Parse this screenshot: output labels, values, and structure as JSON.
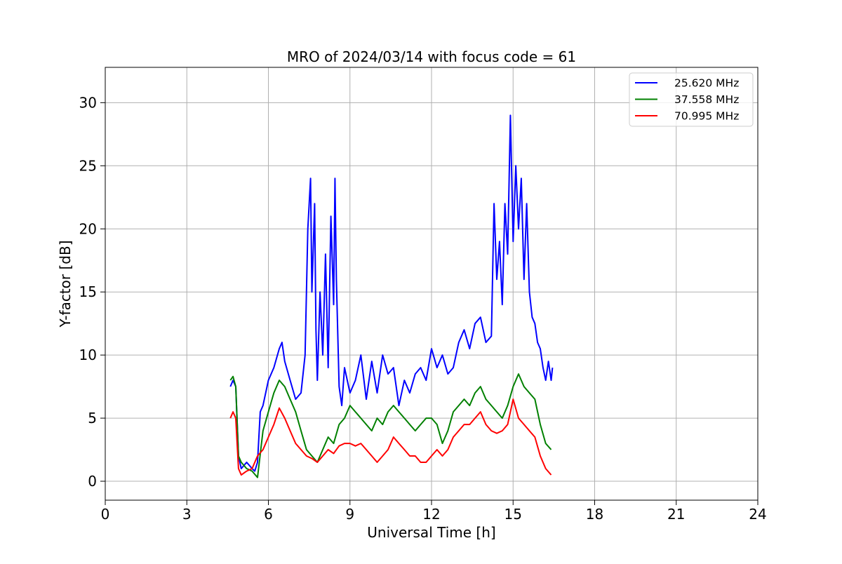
{
  "chart_data": {
    "type": "line",
    "title": "MRO of 2024/03/14 with focus code = 61",
    "xlabel": "Universal Time [h]",
    "ylabel": "Y-factor [dB]",
    "xlim": [
      0,
      24
    ],
    "ylim": [
      -1.5,
      32.8
    ],
    "xticks": [
      0,
      3,
      6,
      9,
      12,
      15,
      18,
      21,
      24
    ],
    "yticks": [
      0,
      5,
      10,
      15,
      20,
      25,
      30
    ],
    "grid": true,
    "legend_position": "top-right",
    "series": [
      {
        "name": "25.620 MHz",
        "color": "#0000ff",
        "x": [
          4.6,
          4.7,
          4.8,
          4.9,
          5.0,
          5.2,
          5.4,
          5.5,
          5.6,
          5.7,
          5.8,
          6.0,
          6.2,
          6.4,
          6.5,
          6.6,
          6.8,
          7.0,
          7.2,
          7.35,
          7.45,
          7.55,
          7.6,
          7.7,
          7.75,
          7.8,
          7.9,
          8.0,
          8.1,
          8.2,
          8.3,
          8.4,
          8.45,
          8.5,
          8.6,
          8.7,
          8.8,
          9.0,
          9.2,
          9.4,
          9.6,
          9.8,
          10.0,
          10.2,
          10.4,
          10.6,
          10.8,
          11.0,
          11.2,
          11.4,
          11.6,
          11.8,
          12.0,
          12.2,
          12.4,
          12.6,
          12.8,
          13.0,
          13.2,
          13.4,
          13.6,
          13.8,
          14.0,
          14.2,
          14.3,
          14.4,
          14.5,
          14.6,
          14.7,
          14.8,
          14.9,
          15.0,
          15.1,
          15.2,
          15.3,
          15.4,
          15.5,
          15.6,
          15.7,
          15.8,
          15.9,
          16.0,
          16.1,
          16.2,
          16.3,
          16.4,
          16.45
        ],
        "y": [
          7.5,
          8.0,
          7.5,
          2.0,
          1.0,
          1.5,
          1.0,
          0.8,
          1.5,
          5.5,
          6.0,
          8.0,
          9.0,
          10.5,
          11.0,
          9.5,
          8.0,
          6.5,
          7.0,
          10.0,
          20.0,
          24.0,
          15.0,
          22.0,
          12.0,
          8.0,
          15.0,
          10.0,
          18.0,
          9.0,
          21.0,
          14.0,
          24.0,
          16.0,
          7.5,
          6.0,
          9.0,
          7.0,
          8.0,
          10.0,
          6.5,
          9.5,
          7.0,
          10.0,
          8.5,
          9.0,
          6.0,
          8.0,
          7.0,
          8.5,
          9.0,
          8.0,
          10.5,
          9.0,
          10.0,
          8.5,
          9.0,
          11.0,
          12.0,
          10.5,
          12.5,
          13.0,
          11.0,
          11.5,
          22.0,
          16.0,
          19.0,
          14.0,
          22.0,
          18.0,
          29.0,
          19.0,
          25.0,
          20.0,
          24.0,
          16.0,
          22.0,
          15.0,
          13.0,
          12.5,
          11.0,
          10.5,
          9.0,
          8.0,
          9.5,
          8.0,
          9.0
        ]
      },
      {
        "name": "37.558 MHz",
        "color": "#008000",
        "x": [
          4.6,
          4.7,
          4.8,
          4.9,
          5.0,
          5.2,
          5.4,
          5.6,
          5.8,
          6.0,
          6.2,
          6.4,
          6.6,
          6.8,
          7.0,
          7.2,
          7.4,
          7.6,
          7.8,
          8.0,
          8.2,
          8.4,
          8.6,
          8.8,
          9.0,
          9.2,
          9.4,
          9.6,
          9.8,
          10.0,
          10.2,
          10.4,
          10.6,
          10.8,
          11.0,
          11.2,
          11.4,
          11.6,
          11.8,
          12.0,
          12.2,
          12.4,
          12.6,
          12.8,
          13.0,
          13.2,
          13.4,
          13.6,
          13.8,
          14.0,
          14.2,
          14.4,
          14.6,
          14.8,
          15.0,
          15.2,
          15.4,
          15.6,
          15.8,
          16.0,
          16.2,
          16.4
        ],
        "y": [
          8.0,
          8.3,
          7.5,
          2.0,
          1.5,
          1.0,
          0.8,
          0.3,
          4.0,
          5.5,
          7.0,
          8.0,
          7.5,
          6.5,
          5.5,
          4.0,
          2.5,
          2.0,
          1.5,
          2.5,
          3.5,
          3.0,
          4.5,
          5.0,
          6.0,
          5.5,
          5.0,
          4.5,
          4.0,
          5.0,
          4.5,
          5.5,
          6.0,
          5.5,
          5.0,
          4.5,
          4.0,
          4.5,
          5.0,
          5.0,
          4.5,
          3.0,
          4.0,
          5.5,
          6.0,
          6.5,
          6.0,
          7.0,
          7.5,
          6.5,
          6.0,
          5.5,
          5.0,
          6.0,
          7.5,
          8.5,
          7.5,
          7.0,
          6.5,
          4.5,
          3.0,
          2.5
        ]
      },
      {
        "name": "70.995 MHz",
        "color": "#ff0000",
        "x": [
          4.6,
          4.7,
          4.8,
          4.9,
          5.0,
          5.2,
          5.4,
          5.6,
          5.8,
          6.0,
          6.2,
          6.4,
          6.6,
          6.8,
          7.0,
          7.2,
          7.4,
          7.6,
          7.8,
          8.0,
          8.2,
          8.4,
          8.6,
          8.8,
          9.0,
          9.2,
          9.4,
          9.6,
          9.8,
          10.0,
          10.2,
          10.4,
          10.6,
          10.8,
          11.0,
          11.2,
          11.4,
          11.6,
          11.8,
          12.0,
          12.2,
          12.4,
          12.6,
          12.8,
          13.0,
          13.2,
          13.4,
          13.6,
          13.8,
          14.0,
          14.2,
          14.4,
          14.6,
          14.8,
          15.0,
          15.2,
          15.4,
          15.6,
          15.8,
          16.0,
          16.2,
          16.4
        ],
        "y": [
          5.0,
          5.5,
          5.0,
          1.0,
          0.5,
          0.8,
          1.0,
          2.0,
          2.5,
          3.5,
          4.5,
          5.8,
          5.0,
          4.0,
          3.0,
          2.5,
          2.0,
          1.8,
          1.5,
          2.0,
          2.5,
          2.2,
          2.8,
          3.0,
          3.0,
          2.8,
          3.0,
          2.5,
          2.0,
          1.5,
          2.0,
          2.5,
          3.5,
          3.0,
          2.5,
          2.0,
          2.0,
          1.5,
          1.5,
          2.0,
          2.5,
          2.0,
          2.5,
          3.5,
          4.0,
          4.5,
          4.5,
          5.0,
          5.5,
          4.5,
          4.0,
          3.8,
          4.0,
          4.5,
          6.5,
          5.0,
          4.5,
          4.0,
          3.5,
          2.0,
          1.0,
          0.5
        ]
      }
    ]
  }
}
